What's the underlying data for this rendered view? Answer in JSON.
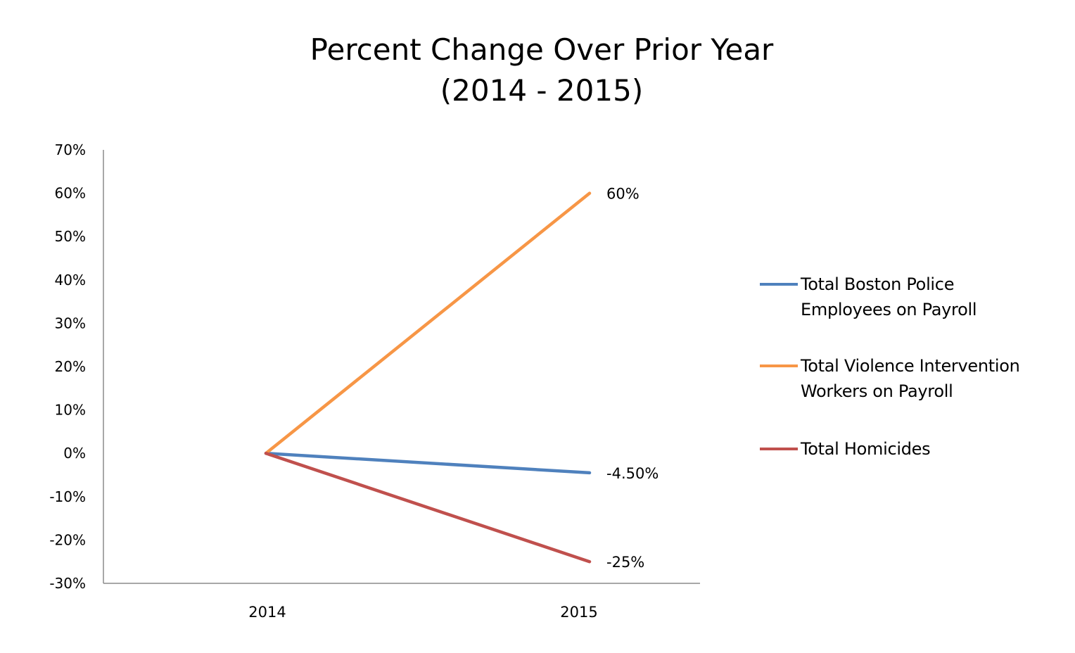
{
  "chart_data": {
    "type": "line",
    "title_lines": [
      "Percent Change Over Prior Year",
      "(2014 - 2015)"
    ],
    "xlabel": "",
    "ylabel": "",
    "categories": [
      "2014",
      "2015"
    ],
    "y_ticks": [
      "70%",
      "60%",
      "50%",
      "40%",
      "30%",
      "20%",
      "10%",
      "0%",
      "-10%",
      "-20%",
      "-30%"
    ],
    "ylim": [
      -30,
      70
    ],
    "y_unit": "percent",
    "grid": false,
    "legend_position": "right",
    "series": [
      {
        "name": "Total Boston Police Employees on Payroll",
        "name_lines": [
          "Total Boston Police",
          "Employees on Payroll"
        ],
        "values": [
          0,
          -4.5
        ],
        "end_label": "-4.50%",
        "color": "#4F81BD"
      },
      {
        "name": "Total Violence Intervention Workers on Payroll",
        "name_lines": [
          "Total Violence Intervention",
          "Workers on Payroll"
        ],
        "values": [
          0,
          60
        ],
        "end_label": "60%",
        "color": "#F79646"
      },
      {
        "name": "Total Homicides",
        "name_lines": [
          "Total Homicides"
        ],
        "values": [
          0,
          -25
        ],
        "end_label": "-25%",
        "color": "#C0504D"
      }
    ]
  }
}
